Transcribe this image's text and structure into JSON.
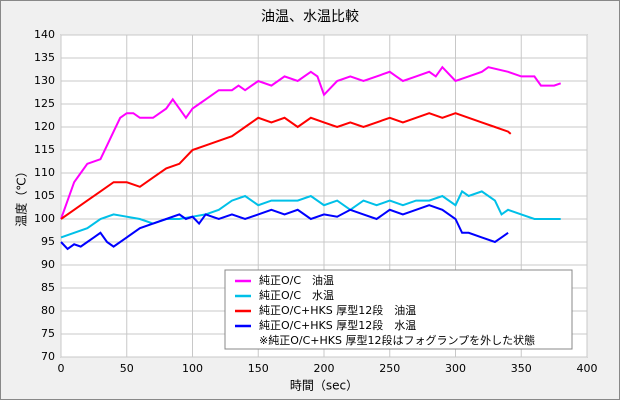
{
  "chart_data": {
    "type": "line",
    "title": "油温、水温比較",
    "xlabel": "時間（sec）",
    "ylabel": "温度（℃）",
    "xlim": [
      0,
      400
    ],
    "xticks": [
      0,
      50,
      100,
      150,
      200,
      250,
      300,
      350,
      400
    ],
    "ylim": [
      70,
      140
    ],
    "yticks": [
      70,
      75,
      80,
      85,
      90,
      95,
      100,
      105,
      110,
      115,
      120,
      125,
      130,
      135,
      140
    ],
    "grid": true,
    "legend": "lower right",
    "annotation": "※純正O/C+HKS 厚型12段はフォグランプを外した状態",
    "series": [
      {
        "name": "純正O/C　油温",
        "color": "#ff00ff",
        "x": [
          0,
          5,
          10,
          15,
          20,
          30,
          35,
          40,
          45,
          50,
          55,
          60,
          70,
          75,
          80,
          85,
          90,
          95,
          100,
          105,
          110,
          120,
          130,
          135,
          140,
          150,
          160,
          170,
          180,
          190,
          195,
          200,
          210,
          220,
          230,
          240,
          250,
          255,
          260,
          270,
          280,
          285,
          290,
          300,
          310,
          320,
          325,
          340,
          350,
          360,
          365,
          375,
          380
        ],
        "values": [
          100,
          104,
          108,
          110,
          112,
          113,
          116,
          119,
          122,
          123,
          123,
          122,
          122,
          123,
          124,
          126,
          124,
          122,
          124,
          125,
          126,
          128,
          128,
          129,
          128,
          130,
          129,
          131,
          130,
          132,
          131,
          127,
          130,
          131,
          130,
          131,
          132,
          131,
          130,
          131,
          132,
          131,
          133,
          130,
          131,
          132,
          133,
          132,
          131,
          131,
          129,
          129,
          129.5
        ]
      },
      {
        "name": "純正O/C　水温",
        "color": "#00c0e8",
        "x": [
          0,
          10,
          20,
          30,
          40,
          50,
          60,
          70,
          80,
          90,
          100,
          110,
          120,
          130,
          140,
          150,
          160,
          170,
          180,
          190,
          200,
          210,
          220,
          230,
          240,
          250,
          260,
          270,
          280,
          290,
          300,
          305,
          310,
          320,
          330,
          335,
          340,
          350,
          360,
          370,
          380
        ],
        "values": [
          96,
          97,
          98,
          100,
          101,
          100.5,
          100,
          99,
          100,
          100,
          100.5,
          101,
          102,
          104,
          105,
          103,
          104,
          104,
          104,
          105,
          103,
          104,
          102,
          104,
          103,
          104,
          103,
          104,
          104,
          105,
          103,
          106,
          105,
          106,
          104,
          101,
          102,
          101,
          100,
          100,
          100
        ]
      },
      {
        "name": "純正O/C+HKS 厚型12段　油温",
        "color": "#ff0000",
        "x": [
          0,
          10,
          20,
          30,
          40,
          50,
          60,
          70,
          80,
          90,
          100,
          110,
          120,
          130,
          140,
          150,
          160,
          170,
          180,
          190,
          200,
          210,
          220,
          230,
          240,
          250,
          260,
          270,
          280,
          290,
          300,
          310,
          320,
          330,
          340,
          342
        ],
        "values": [
          100,
          102,
          104,
          106,
          108,
          108,
          107,
          109,
          111,
          112,
          115,
          116,
          117,
          118,
          120,
          122,
          121,
          122,
          120,
          122,
          121,
          120,
          121,
          120,
          121,
          122,
          121,
          122,
          123,
          122,
          123,
          122,
          121,
          120,
          119,
          118.5
        ]
      },
      {
        "name": "純正O/C+HKS 厚型12段　水温",
        "color": "#0000ff",
        "x": [
          0,
          5,
          10,
          15,
          20,
          25,
          30,
          35,
          40,
          50,
          60,
          70,
          80,
          90,
          95,
          100,
          105,
          110,
          120,
          130,
          140,
          150,
          160,
          170,
          180,
          190,
          200,
          210,
          220,
          230,
          240,
          250,
          260,
          270,
          280,
          290,
          300,
          305,
          310,
          320,
          330,
          335,
          340
        ],
        "values": [
          95,
          93.5,
          94.5,
          94,
          95,
          96,
          97,
          95,
          94,
          96,
          98,
          99,
          100,
          101,
          100,
          100.5,
          99,
          101,
          100,
          101,
          100,
          101,
          102,
          101,
          102,
          100,
          101,
          100.5,
          102,
          101,
          100,
          102,
          101,
          102,
          103,
          102,
          100,
          97,
          97,
          96,
          95,
          96,
          97
        ]
      }
    ]
  }
}
